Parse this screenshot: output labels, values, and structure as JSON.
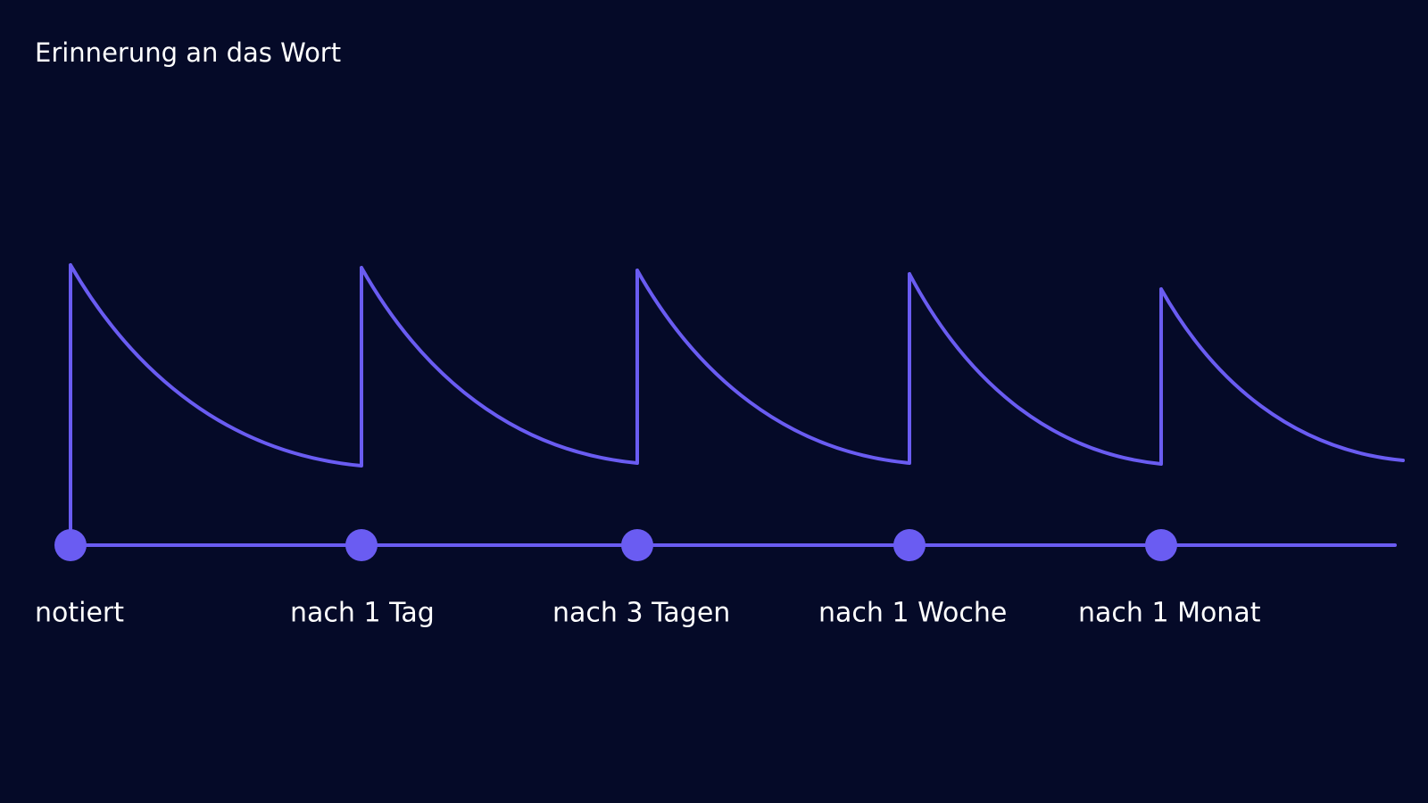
{
  "title": "Erinnerung an das Wort",
  "milestones": [
    {
      "label": "notiert"
    },
    {
      "label": "nach 1 Tag"
    },
    {
      "label": "nach 3 Tagen"
    },
    {
      "label": "nach 1 Woche"
    },
    {
      "label": "nach 1 Monat"
    }
  ]
}
